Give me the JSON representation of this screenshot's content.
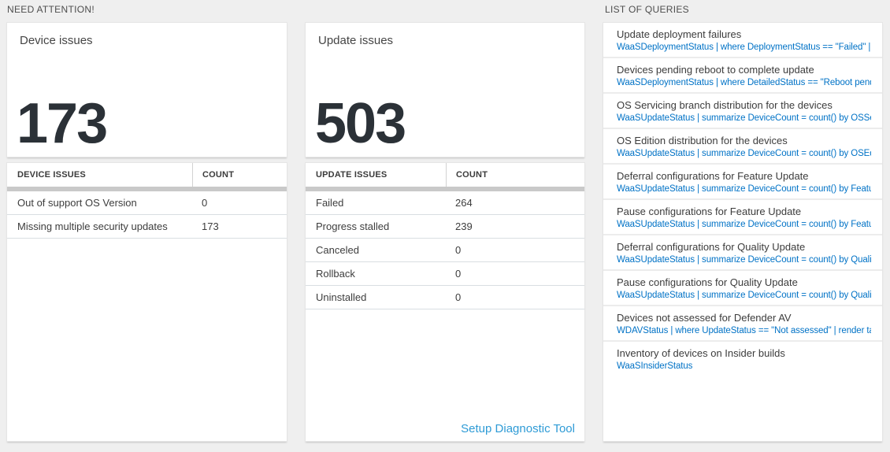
{
  "headers": {
    "need_attention": "NEED ATTENTION!",
    "list_of_queries": "LIST OF QUERIES"
  },
  "device_tile": {
    "title": "Device issues",
    "count": "173",
    "table": {
      "col_issue": "DEVICE ISSUES",
      "col_count": "COUNT",
      "rows": [
        {
          "label": "Out of support OS Version",
          "count": "0"
        },
        {
          "label": "Missing multiple security updates",
          "count": "173"
        }
      ]
    }
  },
  "update_tile": {
    "title": "Update issues",
    "count": "503",
    "table": {
      "col_issue": "UPDATE ISSUES",
      "col_count": "COUNT",
      "rows": [
        {
          "label": "Failed",
          "count": "264"
        },
        {
          "label": "Progress stalled",
          "count": "239"
        },
        {
          "label": "Canceled",
          "count": "0"
        },
        {
          "label": "Rollback",
          "count": "0"
        },
        {
          "label": "Uninstalled",
          "count": "0"
        }
      ]
    },
    "action_link": "Setup Diagnostic Tool"
  },
  "queries": {
    "items": [
      {
        "title": "Update deployment failures",
        "query": "WaaSDeploymentStatus | where DeploymentStatus == \"Failed\" |..."
      },
      {
        "title": "Devices pending reboot to complete update",
        "query": "WaaSDeploymentStatus | where DetailedStatus == \"Reboot pend..."
      },
      {
        "title": "OS Servicing branch distribution for the devices",
        "query": "WaaSUpdateStatus | summarize DeviceCount = count() by OSSer..."
      },
      {
        "title": "OS Edition distribution for the devices",
        "query": "WaaSUpdateStatus | summarize DeviceCount = count() by OSEdit..."
      },
      {
        "title": "Deferral configurations for Feature Update",
        "query": "WaaSUpdateStatus | summarize DeviceCount = count() by Featur..."
      },
      {
        "title": "Pause configurations for Feature Update",
        "query": "WaaSUpdateStatus | summarize DeviceCount = count() by Featur..."
      },
      {
        "title": "Deferral configurations for Quality Update",
        "query": "WaaSUpdateStatus | summarize DeviceCount = count() by Qualit..."
      },
      {
        "title": "Pause configurations for Quality Update",
        "query": "WaaSUpdateStatus | summarize DeviceCount = count() by Qualit..."
      },
      {
        "title": "Devices not assessed for Defender AV",
        "query": "WDAVStatus | where UpdateStatus == \"Not assessed\" | render ta..."
      },
      {
        "title": "Inventory of devices on Insider builds",
        "query": "WaaSInsiderStatus"
      }
    ]
  },
  "colors": {
    "query_link": "#0072c6",
    "action_link": "#2e9bd6",
    "count_number": "#2b3137",
    "page_background": "#efefef"
  }
}
